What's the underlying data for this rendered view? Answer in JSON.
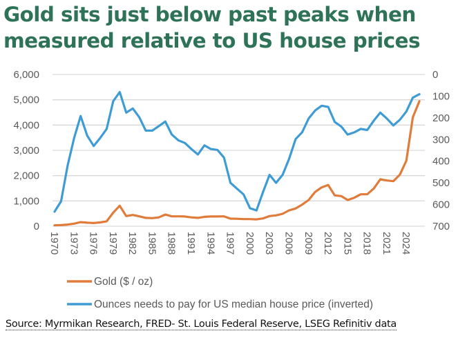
{
  "title": {
    "line1": "Gold sits just below past peaks when",
    "line2": "measured relative to US house prices"
  },
  "source": "Source: Myrmikan Research, FRED- St. Louis Federal Reserve, LSEG Refinitiv data",
  "chart_data": {
    "type": "line",
    "title": "Gold sits just below past peaks when measured relative to US house prices",
    "x": [
      1970,
      1971,
      1972,
      1973,
      1974,
      1975,
      1976,
      1977,
      1978,
      1979,
      1980,
      1981,
      1982,
      1983,
      1984,
      1985,
      1986,
      1987,
      1988,
      1989,
      1990,
      1991,
      1992,
      1993,
      1994,
      1995,
      1996,
      1997,
      1998,
      1999,
      2000,
      2001,
      2002,
      2003,
      2004,
      2005,
      2006,
      2007,
      2008,
      2009,
      2010,
      2011,
      2012,
      2013,
      2014,
      2015,
      2016,
      2017,
      2018,
      2019,
      2020,
      2021,
      2022,
      2023,
      2024,
      2025,
      2026
    ],
    "x_tick_labels": [
      "1970",
      "1973",
      "1976",
      "1979",
      "1982",
      "1985",
      "1988",
      "1991",
      "1994",
      "1997",
      "2000",
      "2003",
      "2006",
      "2009",
      "2012",
      "2015",
      "2018",
      "2021",
      "2024"
    ],
    "left_axis": {
      "ylim": [
        0,
        6000
      ],
      "ticks": [
        "0",
        "1,000",
        "2,000",
        "3,000",
        "4,000",
        "5,000",
        "6,000"
      ],
      "tick_values": [
        0,
        1000,
        2000,
        3000,
        4000,
        5000,
        6000
      ]
    },
    "right_axis": {
      "ylim": [
        0,
        700
      ],
      "inverted": true,
      "ticks": [
        "0",
        "100",
        "200",
        "300",
        "400",
        "500",
        "600",
        "700"
      ],
      "tick_values": [
        0,
        100,
        200,
        300,
        400,
        500,
        600,
        700
      ]
    },
    "grid": true,
    "legend_position": "bottom",
    "series": [
      {
        "name": "Gold ($ / oz)",
        "axis": "left",
        "color": "#e07b39",
        "values": [
          35,
          45,
          65,
          100,
          160,
          140,
          125,
          150,
          195,
          537,
          810,
          400,
          445,
          390,
          330,
          320,
          350,
          460,
          390,
          390,
          385,
          350,
          330,
          370,
          385,
          385,
          390,
          300,
          295,
          280,
          280,
          270,
          308,
          401,
          428,
          491,
          627,
          700,
          854,
          1036,
          1355,
          1535,
          1628,
          1219,
          1192,
          1036,
          1127,
          1263,
          1263,
          1492,
          1854,
          1808,
          1781,
          2037,
          2590,
          4309,
          4944
        ]
      },
      {
        "name": "Ounces needs to pay for US median house price (inverted)",
        "axis": "right",
        "color": "#3e9bd4",
        "values": [
          633,
          585,
          420,
          293,
          192,
          282,
          330,
          293,
          251,
          123,
          81,
          176,
          157,
          197,
          259,
          259,
          238,
          217,
          277,
          304,
          316,
          344,
          369,
          327,
          344,
          348,
          383,
          500,
          527,
          553,
          617,
          627,
          542,
          463,
          500,
          463,
          389,
          298,
          267,
          203,
          166,
          144,
          150,
          219,
          240,
          277,
          267,
          251,
          256,
          213,
          176,
          203,
          235,
          209,
          171,
          107,
          91
        ]
      }
    ]
  }
}
